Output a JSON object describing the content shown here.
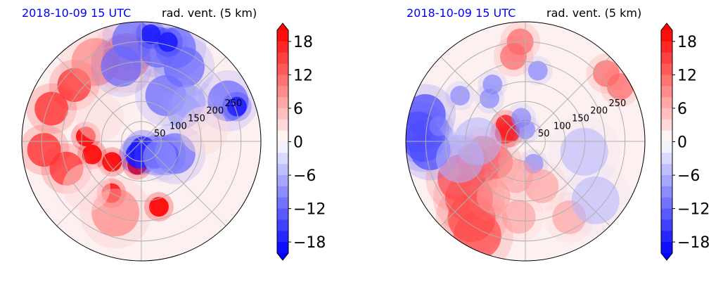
{
  "chart_data": [
    {
      "type": "heatmap",
      "projection": "polar",
      "date_label": "2018-10-09 15 UTC",
      "title": "rad. vent. (5 km)",
      "radial_ticks": [
        "50",
        "100",
        "150",
        "200",
        "250"
      ],
      "radial_values": [
        50,
        100,
        150,
        200,
        250
      ],
      "radial_range": [
        0,
        300
      ],
      "angular_gridlines_deg": [
        0,
        45,
        90,
        135,
        180,
        225,
        270,
        315
      ],
      "grid": true,
      "colorbar": {
        "ticks": [
          "18",
          "12",
          "6",
          "0",
          "−6",
          "−12",
          "−18"
        ],
        "tick_values": [
          18,
          12,
          6,
          0,
          -6,
          -12,
          -18
        ],
        "range": [
          -20,
          20
        ],
        "extend": "both",
        "cmap": "bwr",
        "colors": {
          "negative": "#0000ff",
          "zero": "#ffffff",
          "positive": "#ff0000"
        }
      },
      "features": [
        {
          "value": 20,
          "polar": [
            [
              128,
              195
            ],
            [
              150,
              240
            ],
            [
              170,
              285
            ],
            [
              90,
              215
            ],
            [
              60,
              260
            ],
            [
              140,
              175
            ]
          ]
        },
        {
          "value": 16,
          "polar": [
            [
              200,
              200
            ],
            [
              245,
              185
            ],
            [
              220,
              140
            ],
            [
              240,
              160
            ]
          ]
        },
        {
          "value": 10,
          "polar": [
            [
              215,
              100
            ],
            [
              230,
              120
            ],
            [
              190,
              250
            ]
          ]
        },
        {
          "value": -18,
          "polar": [
            [
              22,
              280
            ],
            [
              50,
              315
            ],
            [
              35,
              260
            ],
            [
              70,
              330
            ]
          ]
        },
        {
          "value": -12,
          "polar": [
            [
              240,
              80
            ],
            [
              215,
              60
            ],
            [
              255,
              95
            ],
            [
              250,
              70
            ],
            [
              195,
              105
            ],
            [
              130,
              62
            ],
            [
              90,
              340
            ],
            [
              240,
              25
            ]
          ]
        },
        {
          "value": -18,
          "polar": [
            [
              258,
              75
            ],
            [
              270,
              85
            ],
            [
              255,
              20
            ]
          ]
        },
        {
          "value": -8,
          "polar": [
            [
              130,
              35
            ],
            [
              155,
              40
            ],
            [
              60,
              320
            ]
          ]
        },
        {
          "value": 3,
          "polar": [
            [
              160,
              10
            ],
            [
              180,
              220
            ],
            [
              120,
              150
            ]
          ]
        }
      ]
    },
    {
      "type": "heatmap",
      "projection": "polar",
      "date_label": "2018-10-09 15 UTC",
      "title": "rad. vent. (5 km)",
      "radial_ticks": [
        "50",
        "100",
        "150",
        "200",
        "250"
      ],
      "radial_values": [
        50,
        100,
        150,
        200,
        250
      ],
      "radial_range": [
        0,
        300
      ],
      "angular_gridlines_deg": [
        0,
        45,
        90,
        135,
        180,
        225,
        270,
        315
      ],
      "grid": true,
      "colorbar": {
        "ticks": [
          "18",
          "12",
          "6",
          "0",
          "−6",
          "−12",
          "−18"
        ],
        "tick_values": [
          18,
          12,
          6,
          0,
          -6,
          -12,
          -18
        ],
        "range": [
          -20,
          20
        ],
        "extend": "both",
        "cmap": "bwr",
        "colors": {
          "negative": "#0000ff",
          "zero": "#ffffff",
          "positive": "#ff0000"
        }
      },
      "features": [
        {
          "value": 18,
          "polar": [
            [
              45,
              150
            ],
            [
              55,
              160
            ],
            [
              65,
              140
            ]
          ]
        },
        {
          "value": 12,
          "polar": [
            [
              110,
              195
            ],
            [
              140,
              200
            ],
            [
              90,
              215
            ],
            [
              125,
              210
            ]
          ]
        },
        {
          "value": 14,
          "polar": [
            [
              185,
              210
            ],
            [
              200,
              225
            ],
            [
              235,
              235
            ],
            [
              265,
              243
            ]
          ]
        },
        {
          "value": 12,
          "polar": [
            [
              250,
              93
            ],
            [
              215,
              98
            ],
            [
              265,
              40
            ],
            [
              275,
              30
            ]
          ]
        },
        {
          "value": -14,
          "polar": [
            [
              270,
              175
            ],
            [
              260,
              165
            ],
            [
              255,
              180
            ],
            [
              240,
              185
            ]
          ]
        },
        {
          "value": -10,
          "polar": [
            [
              140,
              130
            ],
            [
              165,
              120
            ],
            [
              30,
              90
            ],
            [
              60,
              100
            ],
            [
              200,
              145
            ],
            [
              180,
              80
            ],
            [
              60,
              290
            ],
            [
              220,
              170
            ]
          ]
        },
        {
          "value": 8,
          "polar": [
            [
              90,
              255
            ],
            [
              160,
              240
            ],
            [
              190,
              265
            ],
            [
              120,
              290
            ],
            [
              220,
              300
            ]
          ]
        },
        {
          "value": -6,
          "polar": [
            [
              120,
              180
            ],
            [
              170,
              195
            ],
            [
              230,
              320
            ],
            [
              150,
              350
            ]
          ]
        }
      ]
    }
  ]
}
